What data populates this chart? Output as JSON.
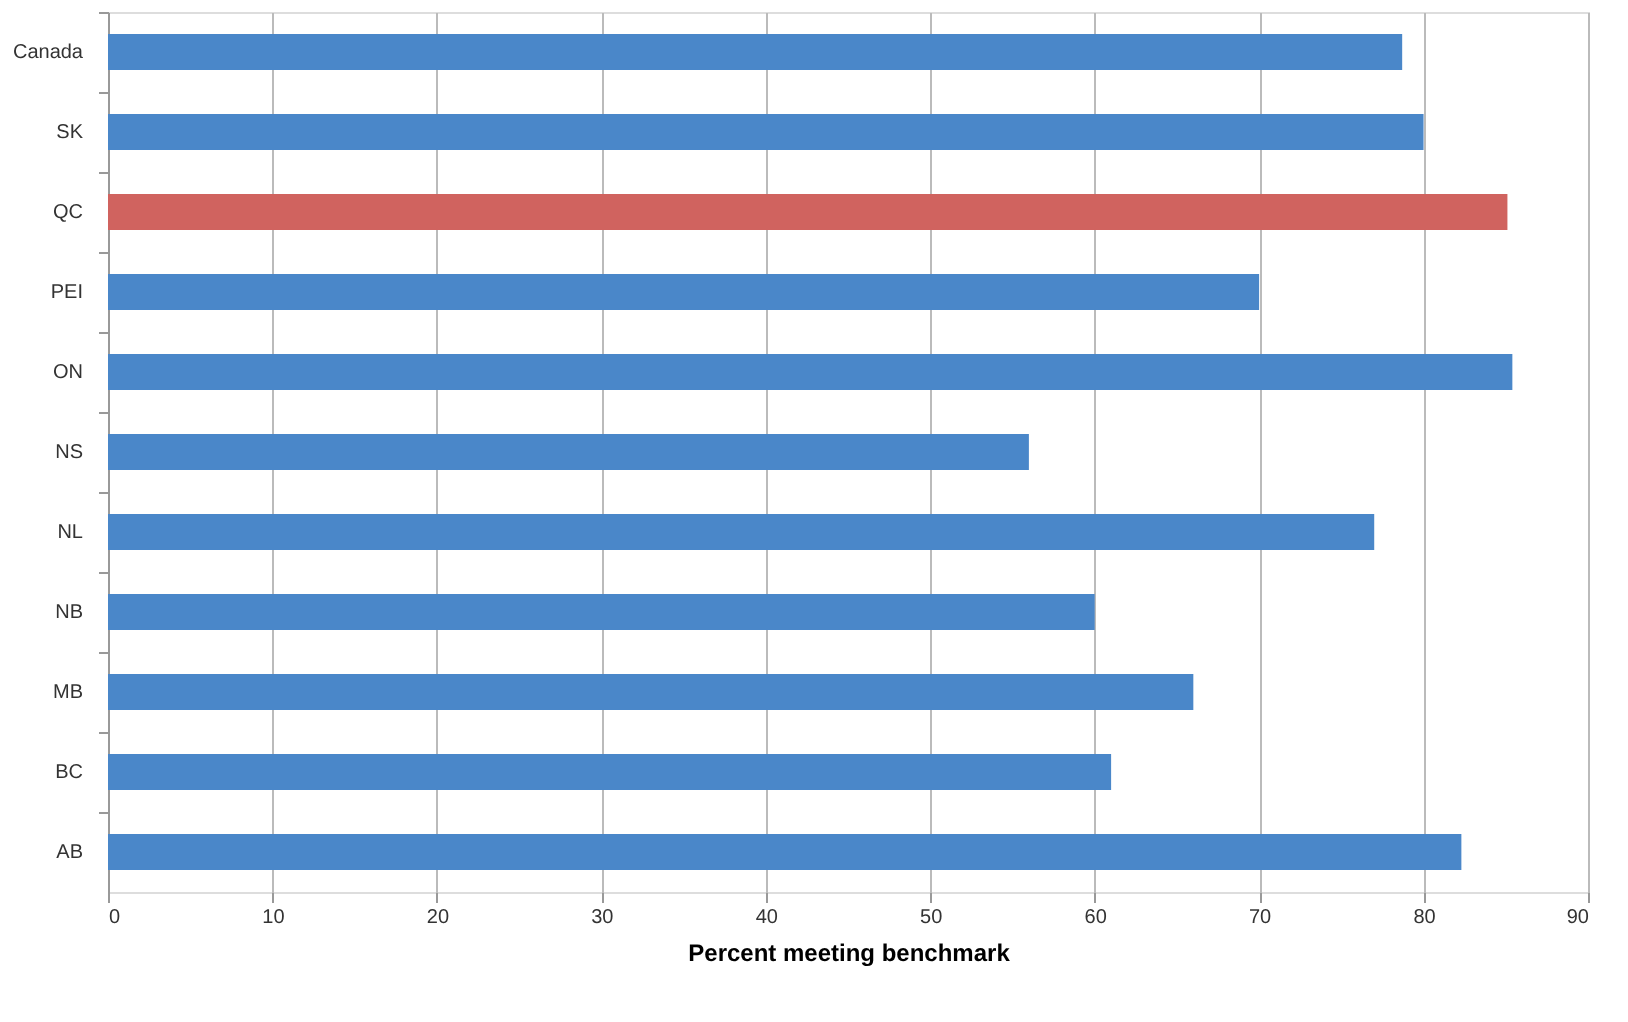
{
  "chart_data": {
    "type": "bar",
    "orientation": "horizontal",
    "xlabel": "Percent meeting benchmark",
    "categories": [
      "Canada",
      "SK",
      "QC",
      "PEI",
      "ON",
      "NS",
      "NL",
      "NB",
      "MB",
      "BC",
      "AB"
    ],
    "values": [
      78.7,
      80.0,
      85.1,
      70.0,
      85.4,
      56.0,
      77.0,
      60.0,
      66.0,
      61.0,
      82.3
    ],
    "colors": [
      "#4a87c9",
      "#4a87c9",
      "#d0635f",
      "#4a87c9",
      "#4a87c9",
      "#4a87c9",
      "#4a87c9",
      "#4a87c9",
      "#4a87c9",
      "#4a87c9",
      "#4a87c9"
    ],
    "xlim": [
      0,
      90
    ],
    "xticks": [
      0,
      10,
      20,
      30,
      40,
      50,
      60,
      70,
      80,
      90
    ],
    "grid": "x"
  }
}
